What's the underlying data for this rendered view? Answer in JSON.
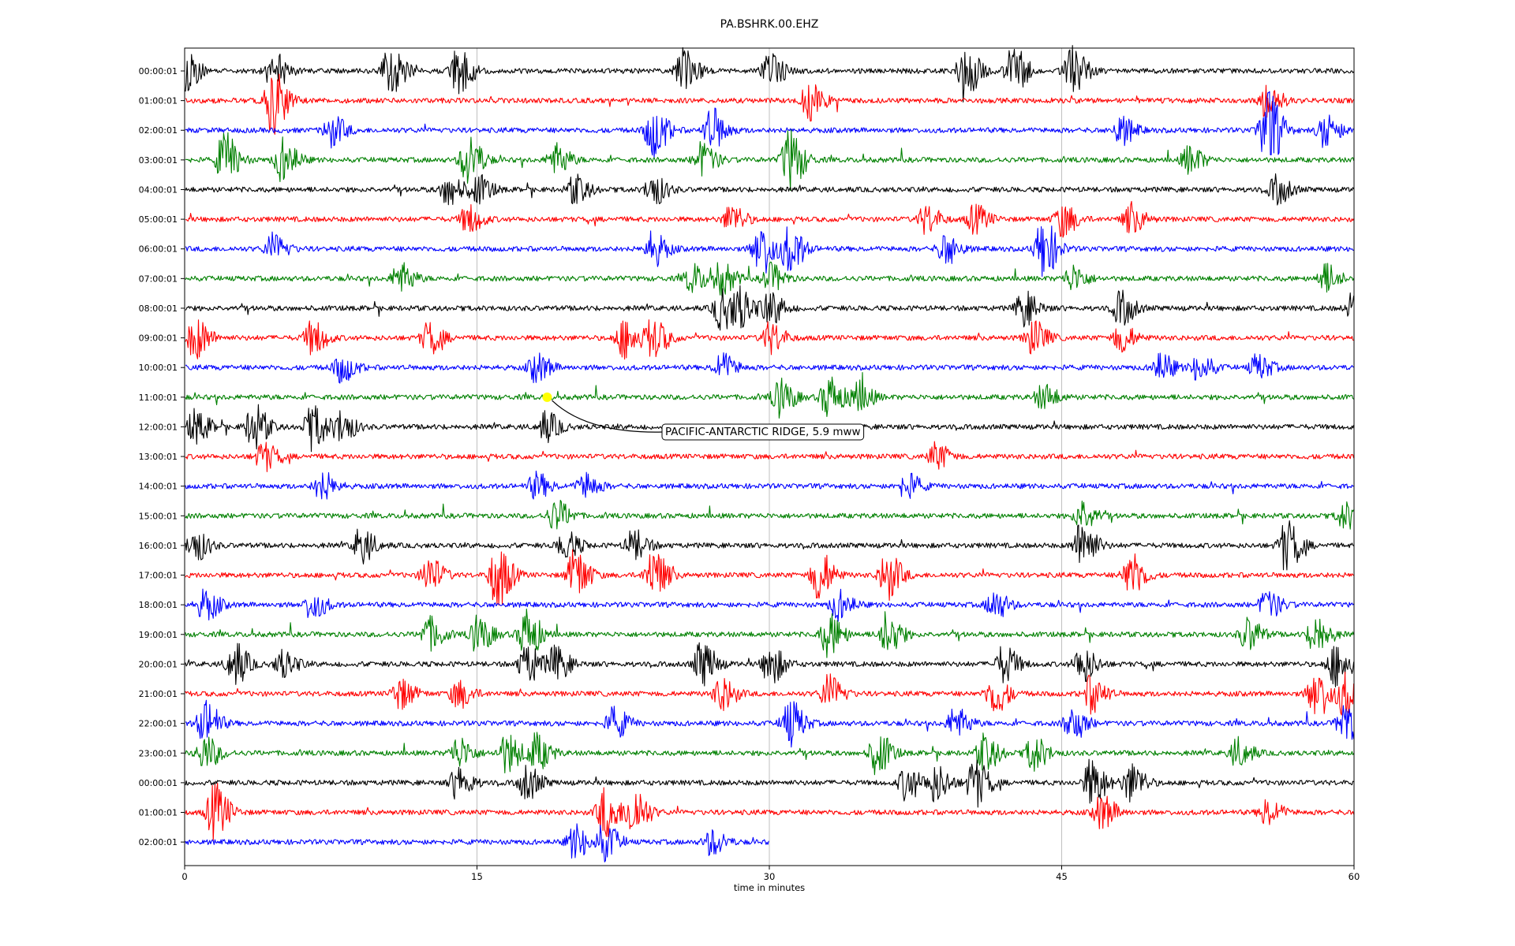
{
  "chart_data": {
    "type": "line",
    "title": "PA.BSHRK.00.EHZ",
    "xlabel": "time in minutes",
    "xlim": [
      0,
      60
    ],
    "x_ticks": [
      "0",
      "15",
      "30",
      "45",
      "60"
    ],
    "grid": "vertical lines at tick positions",
    "row_colors": [
      "#000000",
      "#ff0000",
      "#0000ff",
      "#008000"
    ],
    "rows": [
      {
        "label": "00:00:01",
        "end_minute": 60,
        "bursts": [
          [
            0,
            1.3
          ],
          [
            4.5,
            1.3
          ],
          [
            10.5,
            1.9
          ],
          [
            14,
            1.7
          ],
          [
            25.5,
            1.6
          ],
          [
            30,
            1.3
          ],
          [
            40,
            2.1
          ],
          [
            42.5,
            1.9
          ],
          [
            45.5,
            1.7
          ]
        ]
      },
      {
        "label": "01:00:01",
        "end_minute": 60,
        "bursts": [
          [
            4.5,
            2.3
          ],
          [
            32,
            1.3
          ],
          [
            55.5,
            1.2
          ]
        ]
      },
      {
        "label": "02:00:01",
        "end_minute": 60,
        "bursts": [
          [
            7.5,
            1.1
          ],
          [
            24,
            1.9
          ],
          [
            27,
            1.5
          ],
          [
            48,
            1
          ],
          [
            55.5,
            2.8
          ],
          [
            58.5,
            1.2
          ]
        ]
      },
      {
        "label": "03:00:01",
        "end_minute": 60,
        "bursts": [
          [
            2,
            1.9
          ],
          [
            5,
            1.5
          ],
          [
            14.5,
            1.8
          ],
          [
            19,
            1.1
          ],
          [
            26.5,
            1.2
          ],
          [
            31,
            2.2
          ],
          [
            51.5,
            1
          ]
        ]
      },
      {
        "label": "04:00:01",
        "end_minute": 60,
        "bursts": [
          [
            13.5,
            1.1
          ],
          [
            15,
            1
          ],
          [
            20,
            1
          ],
          [
            24,
            1.1
          ],
          [
            56,
            1
          ]
        ]
      },
      {
        "label": "05:00:01",
        "end_minute": 60,
        "bursts": [
          [
            14.5,
            1
          ],
          [
            28,
            1
          ],
          [
            38,
            1
          ],
          [
            40.5,
            1
          ],
          [
            45,
            1.2
          ],
          [
            48.5,
            1
          ]
        ]
      },
      {
        "label": "06:00:01",
        "end_minute": 60,
        "bursts": [
          [
            4.5,
            1
          ],
          [
            24,
            1.2
          ],
          [
            29.5,
            1.9
          ],
          [
            31,
            1.6
          ],
          [
            39,
            1.1
          ],
          [
            44,
            2.1
          ]
        ]
      },
      {
        "label": "07:00:01",
        "end_minute": 60,
        "bursts": [
          [
            11,
            1.1
          ],
          [
            26,
            1
          ],
          [
            27.5,
            1.1
          ],
          [
            30,
            1
          ],
          [
            45.5,
            0.9
          ],
          [
            58.5,
            1
          ]
        ]
      },
      {
        "label": "08:00:01",
        "end_minute": 60,
        "bursts": [
          [
            27.5,
            1.5
          ],
          [
            28.5,
            1.3
          ],
          [
            30,
            1.2
          ],
          [
            43,
            1.2
          ],
          [
            48,
            1.2
          ],
          [
            60,
            1.3
          ]
        ]
      },
      {
        "label": "09:00:01",
        "end_minute": 60,
        "bursts": [
          [
            0.5,
            1.5
          ],
          [
            6.5,
            1.2
          ],
          [
            12.5,
            1.1
          ],
          [
            22.5,
            1.4
          ],
          [
            24,
            1.4
          ],
          [
            30,
            1.1
          ],
          [
            43.5,
            1.2
          ],
          [
            48,
            1
          ]
        ]
      },
      {
        "label": "10:00:01",
        "end_minute": 60,
        "bursts": [
          [
            8,
            1
          ],
          [
            18,
            1
          ],
          [
            27.5,
            1
          ],
          [
            50,
            1
          ],
          [
            52,
            1
          ],
          [
            55,
            0.9
          ]
        ]
      },
      {
        "label": "11:00:01",
        "end_minute": 60,
        "bursts": [
          [
            30.5,
            1.3
          ],
          [
            33,
            1.5
          ],
          [
            34.5,
            1.2
          ],
          [
            44,
            0.9
          ]
        ]
      },
      {
        "label": "12:00:01",
        "end_minute": 60,
        "bursts": [
          [
            0.5,
            1.2
          ],
          [
            3.5,
            1.6
          ],
          [
            6.5,
            1.6
          ],
          [
            8,
            1.1
          ],
          [
            18.5,
            1
          ]
        ]
      },
      {
        "label": "13:00:01",
        "end_minute": 60,
        "bursts": [
          [
            4,
            1
          ],
          [
            38.5,
            0.9
          ]
        ]
      },
      {
        "label": "14:00:01",
        "end_minute": 60,
        "bursts": [
          [
            7,
            1
          ],
          [
            18,
            0.9
          ],
          [
            20.5,
            0.9
          ],
          [
            37,
            0.9
          ]
        ]
      },
      {
        "label": "15:00:01",
        "end_minute": 60,
        "bursts": [
          [
            19,
            1.1
          ],
          [
            46,
            1.1
          ],
          [
            59.5,
            0.9
          ]
        ]
      },
      {
        "label": "16:00:01",
        "end_minute": 60,
        "bursts": [
          [
            0.5,
            1.1
          ],
          [
            9,
            1.2
          ],
          [
            19.5,
            1
          ],
          [
            23,
            1.1
          ],
          [
            46,
            1.8
          ],
          [
            56.5,
            1.8
          ]
        ]
      },
      {
        "label": "17:00:01",
        "end_minute": 60,
        "bursts": [
          [
            12.5,
            1.3
          ],
          [
            16,
            2.3
          ],
          [
            20,
            1.8
          ],
          [
            24,
            1.8
          ],
          [
            32.5,
            1.8
          ],
          [
            36,
            1.7
          ],
          [
            48.5,
            1.6
          ]
        ]
      },
      {
        "label": "18:00:01",
        "end_minute": 60,
        "bursts": [
          [
            1,
            1.1
          ],
          [
            6.5,
            1
          ],
          [
            33.5,
            1
          ],
          [
            41.5,
            1
          ],
          [
            55.5,
            1
          ]
        ]
      },
      {
        "label": "19:00:01",
        "end_minute": 60,
        "bursts": [
          [
            12.5,
            1.2
          ],
          [
            15,
            1.3
          ],
          [
            17.5,
            1.8
          ],
          [
            33,
            1.5
          ],
          [
            36,
            1.6
          ],
          [
            54.5,
            1.2
          ],
          [
            58,
            1.5
          ]
        ]
      },
      {
        "label": "20:00:01",
        "end_minute": 60,
        "bursts": [
          [
            2.5,
            1.5
          ],
          [
            5,
            1
          ],
          [
            17.5,
            1.4
          ],
          [
            19,
            1.2
          ],
          [
            26.5,
            1.6
          ],
          [
            30,
            1.4
          ],
          [
            42,
            1.3
          ],
          [
            46,
            1.3
          ],
          [
            59,
            1.5
          ]
        ]
      },
      {
        "label": "21:00:01",
        "end_minute": 60,
        "bursts": [
          [
            11,
            1.1
          ],
          [
            14,
            1
          ],
          [
            27.5,
            1.2
          ],
          [
            33,
            1.3
          ],
          [
            41.5,
            1.4
          ],
          [
            46.5,
            1.3
          ],
          [
            58,
            1.8
          ],
          [
            59.5,
            1.5
          ]
        ]
      },
      {
        "label": "22:00:01",
        "end_minute": 60,
        "bursts": [
          [
            1,
            1.6
          ],
          [
            22,
            1.1
          ],
          [
            31,
            1.7
          ],
          [
            39.5,
            1.1
          ],
          [
            45.5,
            1.2
          ],
          [
            59.5,
            1.5
          ]
        ]
      },
      {
        "label": "23:00:01",
        "end_minute": 60,
        "bursts": [
          [
            1,
            1.2
          ],
          [
            14,
            1.1
          ],
          [
            16.5,
            1.4
          ],
          [
            18,
            1.3
          ],
          [
            35.5,
            1.5
          ],
          [
            41,
            1.3
          ],
          [
            43.5,
            1.2
          ],
          [
            54,
            1
          ]
        ]
      },
      {
        "label": "00:00:01",
        "end_minute": 60,
        "bursts": [
          [
            14,
            1.2
          ],
          [
            17.5,
            1.2
          ],
          [
            37,
            1.2
          ],
          [
            38.5,
            1.3
          ],
          [
            40.5,
            1.7
          ],
          [
            46.5,
            1.7
          ],
          [
            48.5,
            1.4
          ]
        ]
      },
      {
        "label": "01:00:01",
        "end_minute": 60,
        "bursts": [
          [
            1.5,
            2
          ],
          [
            21.5,
            1.8
          ],
          [
            23,
            1.8
          ],
          [
            47,
            1.2
          ],
          [
            55.5,
            1
          ]
        ]
      },
      {
        "label": "02:00:01",
        "end_minute": 30,
        "bursts": [
          [
            20,
            1.2
          ],
          [
            21.5,
            1.3
          ],
          [
            27,
            0.9
          ]
        ]
      }
    ],
    "annotation": {
      "text": "PACIFIC-ANTARCTIC RIDGE, 5.9 mww",
      "row_index": 11,
      "minute": 18.6,
      "marker_color": "#ffff00"
    }
  }
}
